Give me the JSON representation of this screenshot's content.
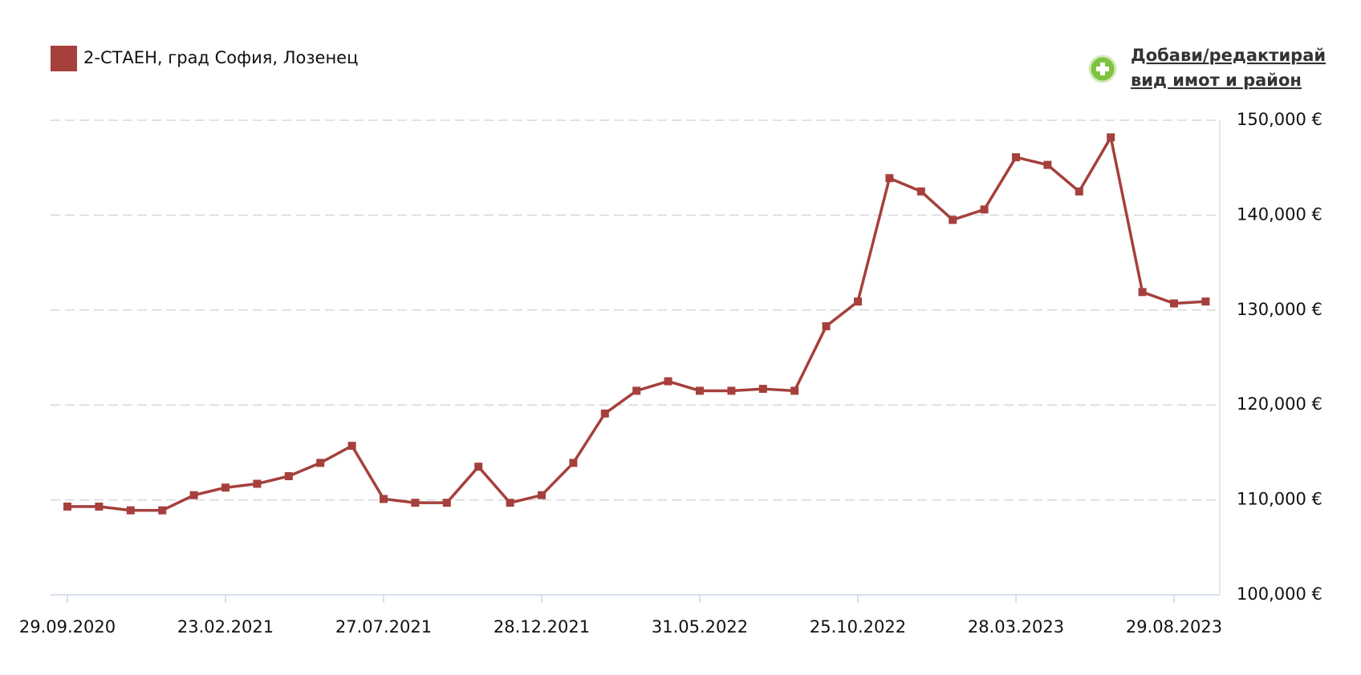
{
  "chart_data": {
    "type": "line",
    "legend": "2-СТАЕН, град София, Лозенец",
    "link": [
      "Добави/редактирай",
      "вид имот и район"
    ],
    "categories": [
      "29.09.2020",
      null,
      null,
      null,
      null,
      "23.02.2021",
      null,
      null,
      null,
      null,
      "27.07.2021",
      null,
      null,
      null,
      null,
      "28.12.2021",
      null,
      null,
      null,
      null,
      "31.05.2022",
      null,
      null,
      null,
      null,
      "25.10.2022",
      null,
      null,
      null,
      null,
      "28.03.2023",
      null,
      null,
      null,
      null,
      "29.08.2023",
      null
    ],
    "series": [
      {
        "name": "2-СТАЕН, град София, Лозенец",
        "color": "#a5403c",
        "values": [
          109300,
          109300,
          108900,
          108900,
          110500,
          111300,
          111700,
          112500,
          113900,
          115700,
          110100,
          109700,
          109700,
          113500,
          109700,
          110500,
          113900,
          119100,
          121500,
          122500,
          121500,
          121500,
          121700,
          121500,
          128300,
          130900,
          143900,
          142500,
          139500,
          140600,
          146100,
          145300,
          142500,
          148200,
          131900,
          130700,
          130900
        ]
      }
    ],
    "ylim": [
      100000,
      150000
    ],
    "yticks": [
      {
        "value": 100000,
        "label": "100,000 €"
      },
      {
        "value": 110000,
        "label": "110,000 €"
      },
      {
        "value": 120000,
        "label": "120,000 €"
      },
      {
        "value": 130000,
        "label": "130,000 €"
      },
      {
        "value": 140000,
        "label": "140,000 €"
      },
      {
        "value": 150000,
        "label": "150,000 €"
      }
    ],
    "grid": true
  }
}
